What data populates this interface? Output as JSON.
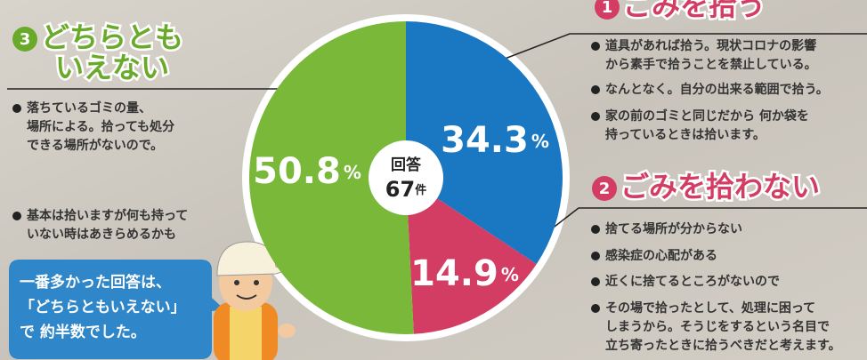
{
  "chart_data": {
    "type": "pie",
    "category_numbers": [
      1,
      2,
      3
    ],
    "category_lines": [
      [
        "ごみを拾う"
      ],
      [
        "ごみを拾わない"
      ],
      [
        "どちらとも",
        "いえない"
      ]
    ],
    "values": [
      34.3,
      14.9,
      50.8
    ],
    "unit": "%",
    "colors": [
      "#1a78c2",
      "#d43d63",
      "#7ab83a"
    ],
    "center": {
      "label": "回答",
      "count": 67,
      "count_unit": "件"
    },
    "comments": [
      [
        [
          "道具があれば拾う。現状コロナの影響",
          "から素手で拾うことを禁止している。"
        ],
        [
          "なんとなく。自分の出来る範囲で拾う。"
        ],
        [
          "家の前のゴミと同じだから 何か袋を",
          "持っているときは拾います。"
        ]
      ],
      [
        [
          "捨てる場所が分からない"
        ],
        [
          "感染症の心配がある"
        ],
        [
          "近くに捨てるところがないので"
        ],
        [
          "その場で拾ったとして、処理に困って",
          "しまうから。そうじをするという名目で",
          "立ち寄ったときに拾うべきだと考えます。"
        ]
      ],
      [
        [
          "落ちているゴミの量、",
          "場所による。拾っても処分",
          "できる場所がないので。"
        ],
        [
          "基本は拾いますが何も持って",
          "いない時はあきらめるかも"
        ]
      ]
    ],
    "callout": [
      "一番多かった回答は、",
      "「どちらともいえない」",
      "で 約半数でした。"
    ]
  }
}
